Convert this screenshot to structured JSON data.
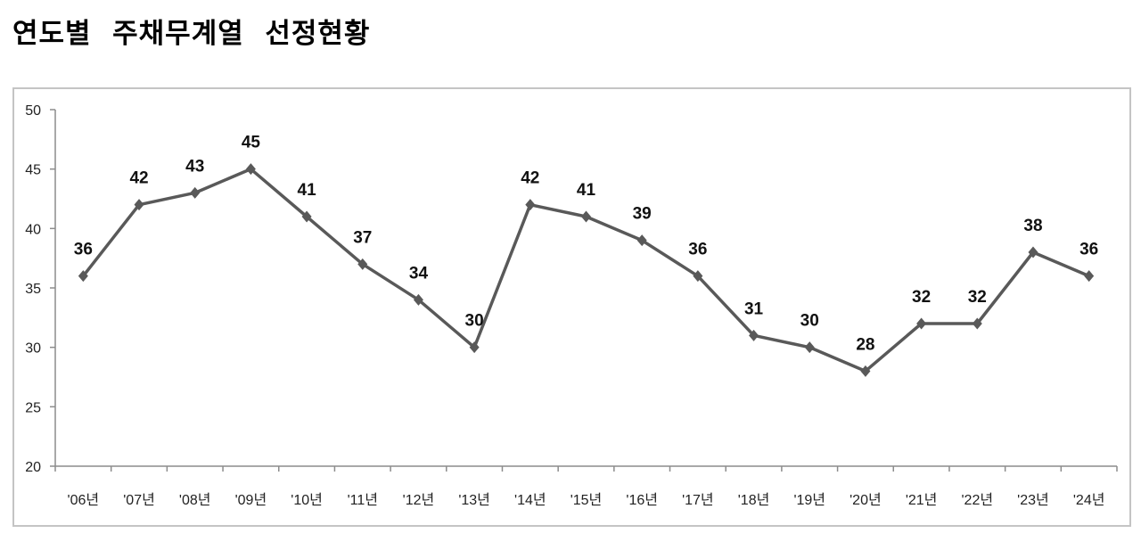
{
  "title": "연도별  주채무계열  선정현황",
  "chart_data": {
    "type": "line",
    "title": "",
    "xlabel": "",
    "ylabel": "",
    "categories": [
      "'06년",
      "'07년",
      "'08년",
      "'09년",
      "'10년",
      "'11년",
      "'12년",
      "'13년",
      "'14년",
      "'15년",
      "'16년",
      "'17년",
      "'18년",
      "'19년",
      "'20년",
      "'21년",
      "'22년",
      "'23년",
      "'24년"
    ],
    "values": [
      36,
      42,
      43,
      45,
      41,
      37,
      34,
      30,
      42,
      41,
      39,
      36,
      31,
      30,
      28,
      32,
      32,
      38,
      36
    ],
    "ylim": [
      20,
      50
    ],
    "yticks": [
      20,
      25,
      30,
      35,
      40,
      45,
      50
    ],
    "grid": false,
    "legend": "none",
    "marker": "diamond",
    "line_color": "#595959",
    "data_labels": true
  }
}
